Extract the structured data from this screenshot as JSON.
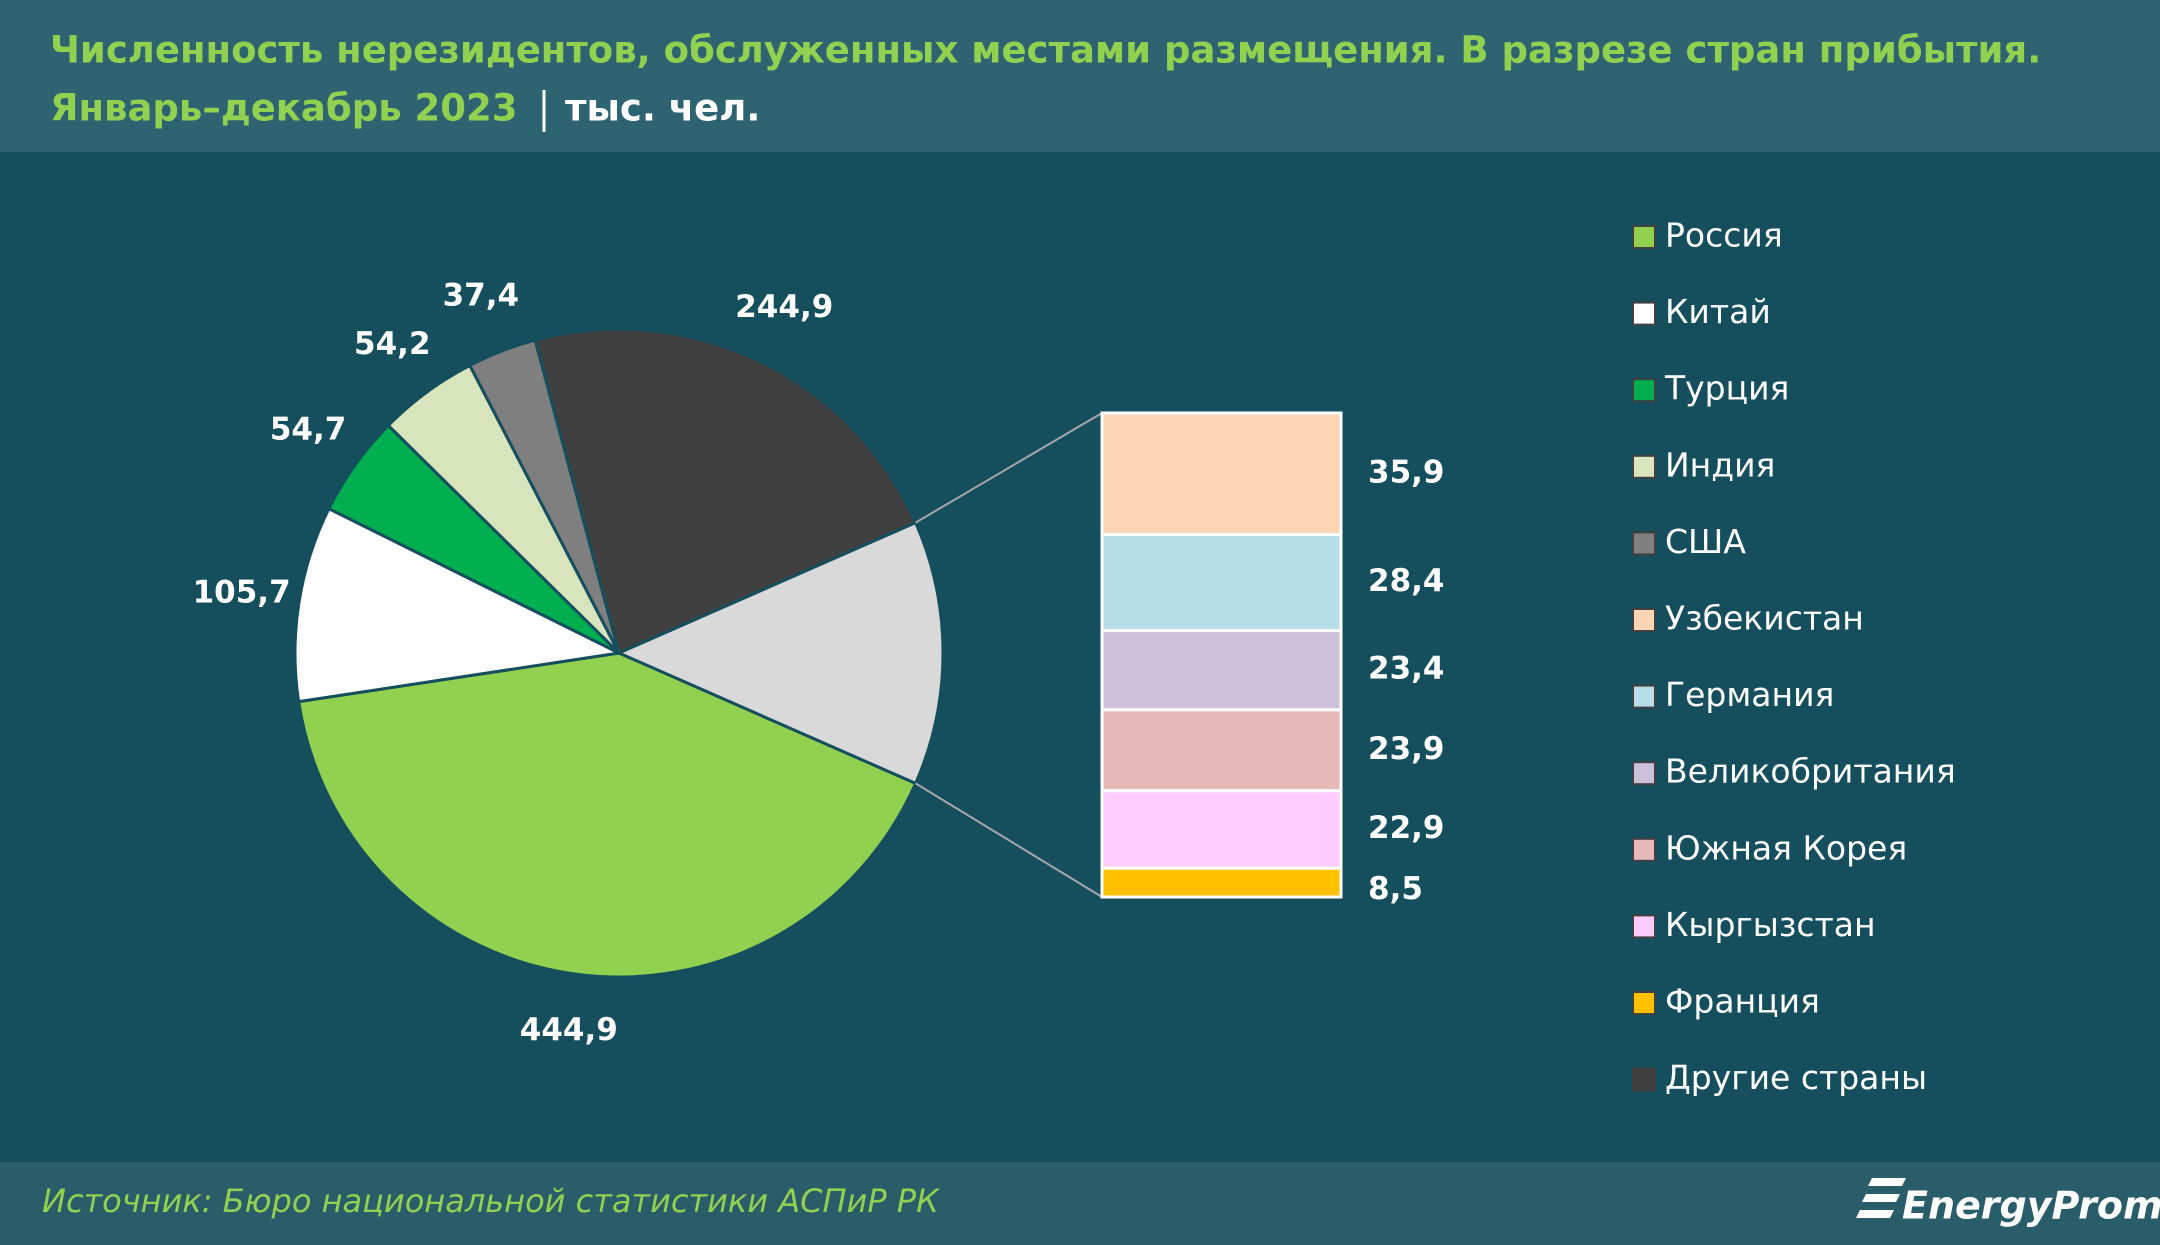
{
  "chart_data": {
    "type": "pie-of-bar",
    "title": "Численность нерезидентов, обслуженных местами размещения. В разрезе стран прибытия.",
    "subtitle": "Январь–декабрь 2023",
    "unit": "тыс. чел.",
    "source": "Источник: Бюро национальной статистики АСПиР РК",
    "logo": "EnergyProm",
    "pie": {
      "categories": [
        "Россия",
        "Китай",
        "Турция",
        "Индия",
        "США",
        "Другие страны"
      ],
      "values": [
        444.9,
        105.7,
        54.7,
        54.2,
        37.4,
        244.9
      ],
      "value_labels": [
        "444,9",
        "105,7",
        "54,7",
        "54,2",
        "37,4",
        "244,9"
      ],
      "colors": [
        "#92d050",
        "#ffffff",
        "#00b050",
        "#d8e4bc",
        "#7f7f7f",
        "#404040"
      ]
    },
    "group_color": "#d9d9d9",
    "bar": {
      "categories": [
        "Узбекистан",
        "Германия",
        "Великобритания",
        "Южная Корея",
        "Кыргызстан",
        "Франция"
      ],
      "values": [
        35.9,
        28.4,
        23.4,
        23.9,
        22.9,
        8.5
      ],
      "value_labels": [
        "35,9",
        "28,4",
        "23,4",
        "23,9",
        "22,9",
        "8,5"
      ],
      "colors": [
        "#fcd5b4",
        "#b7dee8",
        "#ccc0da",
        "#e6b9b8",
        "#ffccff",
        "#ffc000"
      ]
    }
  }
}
